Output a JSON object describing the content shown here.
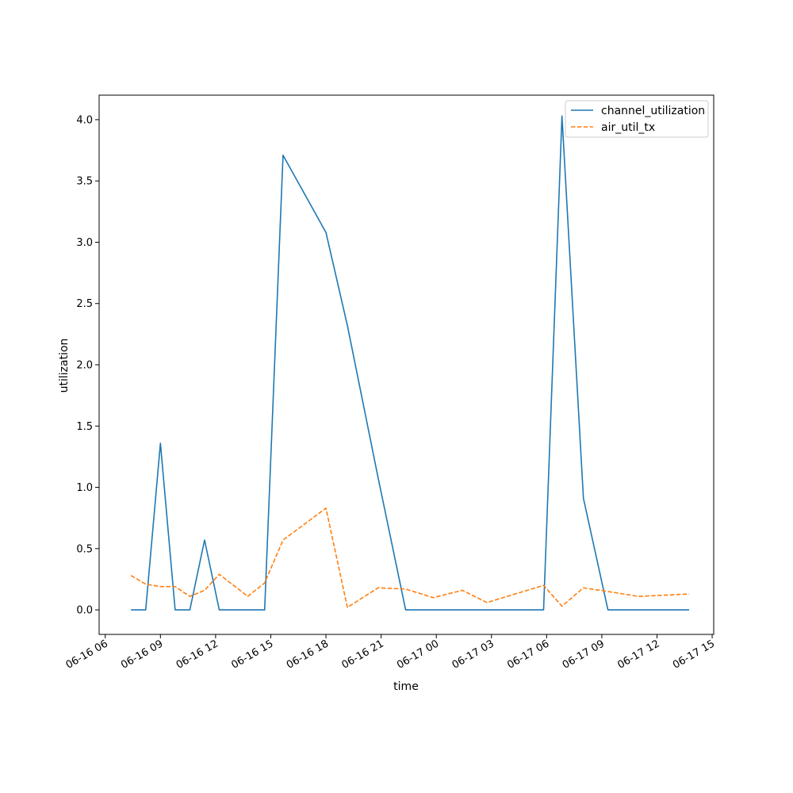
{
  "chart_data": {
    "type": "line",
    "title": "",
    "xlabel": "time",
    "ylabel": "utilization",
    "xlim": [
      "2022-06-16 05:40",
      "2022-06-17 15:05"
    ],
    "ylim": [
      -0.2,
      4.2
    ],
    "grid": false,
    "legend_position": "top-right",
    "x_ticks": [
      {
        "t": "2022-06-16 06:00",
        "label": "06-16 06"
      },
      {
        "t": "2022-06-16 09:00",
        "label": "06-16 09"
      },
      {
        "t": "2022-06-16 12:00",
        "label": "06-16 12"
      },
      {
        "t": "2022-06-16 15:00",
        "label": "06-16 15"
      },
      {
        "t": "2022-06-16 18:00",
        "label": "06-16 18"
      },
      {
        "t": "2022-06-16 21:00",
        "label": "06-16 21"
      },
      {
        "t": "2022-06-17 00:00",
        "label": "06-17 00"
      },
      {
        "t": "2022-06-17 03:00",
        "label": "06-17 03"
      },
      {
        "t": "2022-06-17 06:00",
        "label": "06-17 06"
      },
      {
        "t": "2022-06-17 09:00",
        "label": "06-17 09"
      },
      {
        "t": "2022-06-17 12:00",
        "label": "06-17 12"
      },
      {
        "t": "2022-06-17 15:00",
        "label": "06-17 15"
      }
    ],
    "y_ticks": [
      {
        "v": 0.0,
        "label": "0.0"
      },
      {
        "v": 0.5,
        "label": "0.5"
      },
      {
        "v": 1.0,
        "label": "1.0"
      },
      {
        "v": 1.5,
        "label": "1.5"
      },
      {
        "v": 2.0,
        "label": "2.0"
      },
      {
        "v": 2.5,
        "label": "2.5"
      },
      {
        "v": 3.0,
        "label": "3.0"
      },
      {
        "v": 3.5,
        "label": "3.5"
      },
      {
        "v": 4.0,
        "label": "4.0"
      }
    ],
    "series": [
      {
        "name": "channel_utilization",
        "color": "#1f77b4",
        "style": "solid",
        "points": [
          {
            "t": "2022-06-16 07:24",
            "y": 0.0
          },
          {
            "t": "2022-06-16 08:12",
            "y": 0.0
          },
          {
            "t": "2022-06-16 09:00",
            "y": 1.36
          },
          {
            "t": "2022-06-16 09:48",
            "y": 0.0
          },
          {
            "t": "2022-06-16 10:36",
            "y": 0.0
          },
          {
            "t": "2022-06-16 11:24",
            "y": 0.57
          },
          {
            "t": "2022-06-16 12:12",
            "y": 0.0
          },
          {
            "t": "2022-06-16 14:40",
            "y": 0.0
          },
          {
            "t": "2022-06-16 15:40",
            "y": 3.71
          },
          {
            "t": "2022-06-16 18:00",
            "y": 3.08
          },
          {
            "t": "2022-06-16 19:10",
            "y": 2.32
          },
          {
            "t": "2022-06-16 20:50",
            "y": 1.08
          },
          {
            "t": "2022-06-16 22:20",
            "y": 0.0
          },
          {
            "t": "2022-06-17 05:50",
            "y": 0.0
          },
          {
            "t": "2022-06-17 06:50",
            "y": 4.03
          },
          {
            "t": "2022-06-17 08:00",
            "y": 0.91
          },
          {
            "t": "2022-06-17 09:20",
            "y": 0.0
          },
          {
            "t": "2022-06-17 13:45",
            "y": 0.0
          }
        ]
      },
      {
        "name": "air_util_tx",
        "color": "#ff7f0e",
        "style": "dashed",
        "points": [
          {
            "t": "2022-06-16 07:24",
            "y": 0.28
          },
          {
            "t": "2022-06-16 08:12",
            "y": 0.21
          },
          {
            "t": "2022-06-16 09:00",
            "y": 0.19
          },
          {
            "t": "2022-06-16 09:48",
            "y": 0.19
          },
          {
            "t": "2022-06-16 10:36",
            "y": 0.11
          },
          {
            "t": "2022-06-16 11:24",
            "y": 0.16
          },
          {
            "t": "2022-06-16 12:12",
            "y": 0.29
          },
          {
            "t": "2022-06-16 13:45",
            "y": 0.11
          },
          {
            "t": "2022-06-16 14:40",
            "y": 0.22
          },
          {
            "t": "2022-06-16 15:40",
            "y": 0.57
          },
          {
            "t": "2022-06-16 18:00",
            "y": 0.83
          },
          {
            "t": "2022-06-16 19:10",
            "y": 0.02
          },
          {
            "t": "2022-06-16 20:50",
            "y": 0.18
          },
          {
            "t": "2022-06-16 22:20",
            "y": 0.17
          },
          {
            "t": "2022-06-16 23:50",
            "y": 0.1
          },
          {
            "t": "2022-06-17 01:25",
            "y": 0.16
          },
          {
            "t": "2022-06-17 02:45",
            "y": 0.06
          },
          {
            "t": "2022-06-17 05:50",
            "y": 0.2
          },
          {
            "t": "2022-06-17 06:50",
            "y": 0.03
          },
          {
            "t": "2022-06-17 08:00",
            "y": 0.18
          },
          {
            "t": "2022-06-17 09:20",
            "y": 0.15
          },
          {
            "t": "2022-06-17 11:00",
            "y": 0.11
          },
          {
            "t": "2022-06-17 13:45",
            "y": 0.13
          }
        ]
      }
    ]
  }
}
